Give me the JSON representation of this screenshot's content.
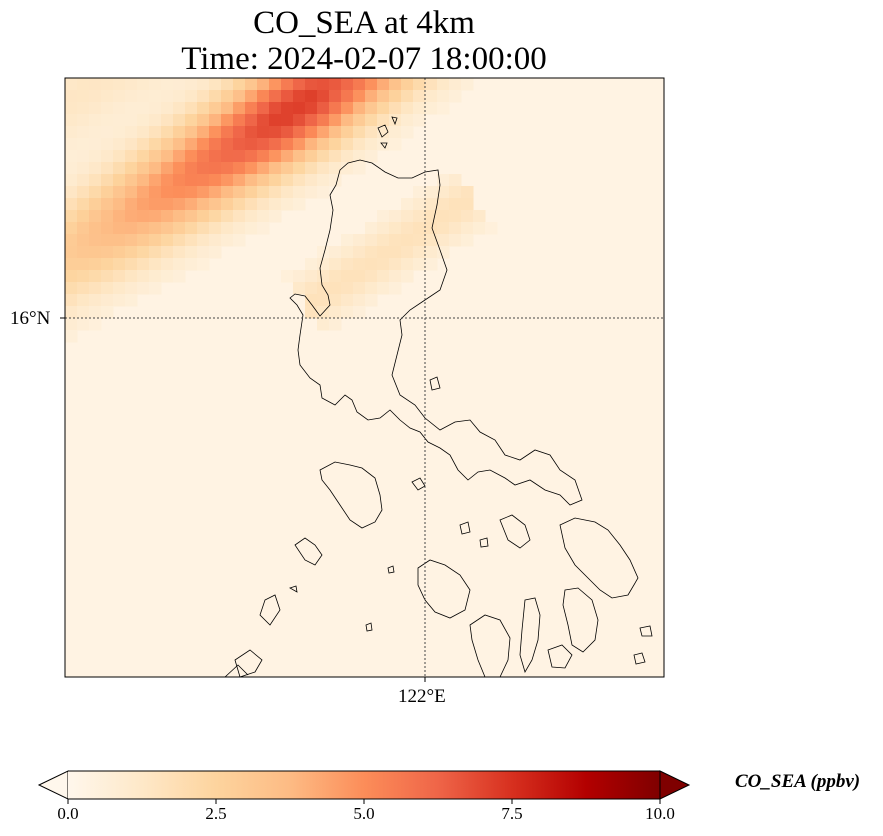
{
  "title_line1": "CO_SEA at 4km",
  "title_line2": "Time: 2024-02-07 18:00:00",
  "gridlines": {
    "latitude_label": "16°N",
    "longitude_label": "122°E"
  },
  "colorbar": {
    "label": "CO_SEA (ppbv)",
    "ticks": [
      "0.0",
      "2.5",
      "5.0",
      "7.5",
      "10.0"
    ],
    "extend": "both",
    "colormap": "OrRd",
    "stops": [
      "#fff7ec",
      "#fee8c8",
      "#fdd49e",
      "#fdbb84",
      "#fc8d59",
      "#ef6548",
      "#d7301f",
      "#b30000",
      "#7f0000"
    ]
  },
  "plume": {
    "description_color_high": "#d7301f",
    "peak_value_ppbv": 6.8
  }
}
